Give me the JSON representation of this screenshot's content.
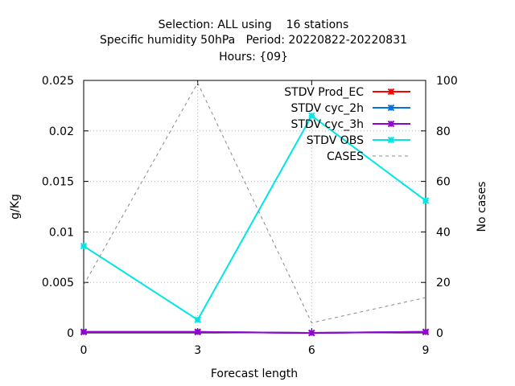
{
  "chart_data": {
    "type": "line",
    "title_lines": [
      "Selection: ALL using    16 stations",
      "Specific humidity 50hPa   Period: 20220822-20220831",
      "Hours: {09}"
    ],
    "xlabel": "Forecast length",
    "ylabel": "g/Kg",
    "y2label": "No cases",
    "x": [
      0,
      3,
      6,
      9
    ],
    "xticks": [
      "0",
      "3",
      "6",
      "9"
    ],
    "xlim": [
      0,
      9
    ],
    "ylim": [
      0,
      0.025
    ],
    "yticks": [
      "0",
      "0.005",
      "0.01",
      "0.015",
      "0.02",
      "0.025"
    ],
    "y2lim": [
      0,
      100
    ],
    "y2ticks": [
      "0",
      "20",
      "40",
      "60",
      "80",
      "100"
    ],
    "grid": true,
    "legend_position": "top-right",
    "series": [
      {
        "name": "STDV Prod_EC",
        "color": "#ff0000",
        "axis": "y1",
        "values": [
          0.0001,
          0.0001,
          0.0,
          0.0001
        ]
      },
      {
        "name": "STDV cyc_2h",
        "color": "#0072e0",
        "axis": "y1",
        "values": [
          0.0001,
          0.0001,
          0.0,
          0.0001
        ]
      },
      {
        "name": "STDV cyc_3h",
        "color": "#9400d3",
        "axis": "y1",
        "values": [
          0.0001,
          0.0001,
          0.0,
          0.0001
        ]
      },
      {
        "name": "STDV OBS",
        "color": "#00e5e5",
        "axis": "y1",
        "values": [
          0.0086,
          0.0013,
          0.0215,
          0.0131
        ]
      },
      {
        "name": "CASES",
        "color": "#888888",
        "axis": "y2",
        "dashed": true,
        "values": [
          19,
          99,
          4,
          14
        ]
      }
    ]
  }
}
